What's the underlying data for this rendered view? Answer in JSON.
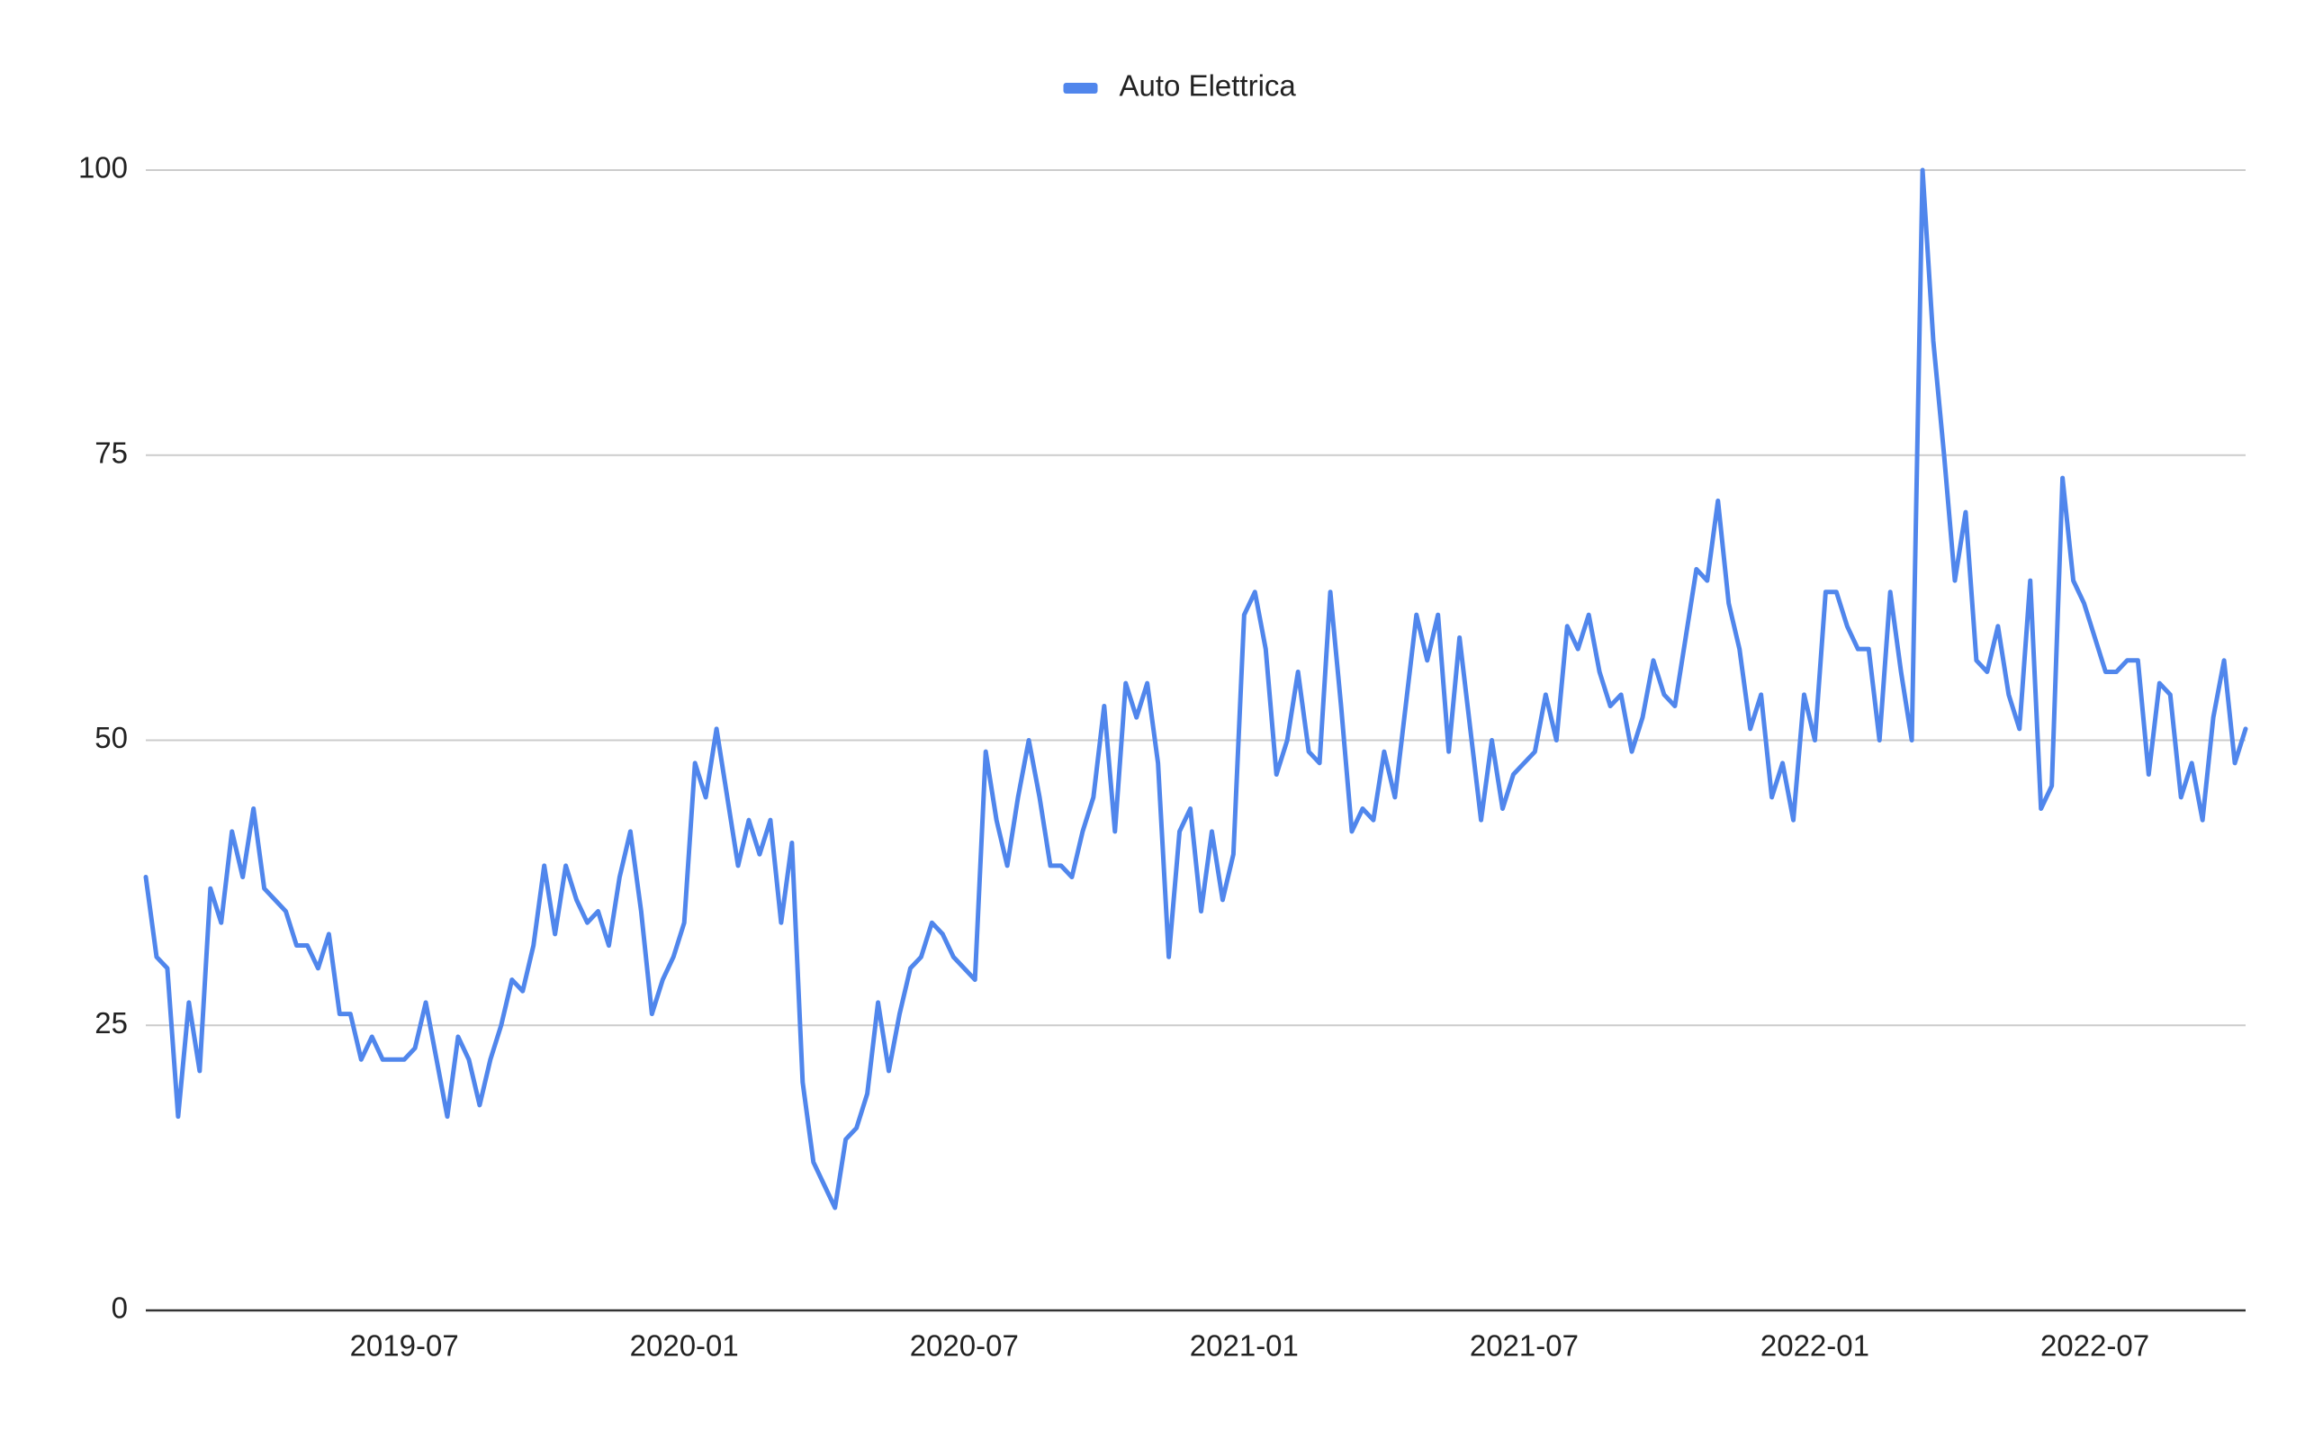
{
  "chart_data": {
    "type": "line",
    "legend": "top",
    "grid": true,
    "ylim": [
      0,
      100
    ],
    "yticks": [
      0,
      25,
      50,
      75,
      100
    ],
    "categories": [
      null,
      null,
      null,
      null,
      null,
      null,
      null,
      null,
      null,
      null,
      null,
      null,
      null,
      null,
      null,
      null,
      null,
      null,
      null,
      null,
      null,
      null,
      null,
      null,
      "2019-07",
      null,
      null,
      null,
      null,
      null,
      null,
      null,
      null,
      null,
      null,
      null,
      null,
      null,
      null,
      null,
      null,
      null,
      null,
      null,
      null,
      null,
      null,
      null,
      null,
      null,
      "2020-01",
      null,
      null,
      null,
      null,
      null,
      null,
      null,
      null,
      null,
      null,
      null,
      null,
      null,
      null,
      null,
      null,
      null,
      null,
      null,
      null,
      null,
      null,
      null,
      null,
      null,
      "2020-07",
      null,
      null,
      null,
      null,
      null,
      null,
      null,
      null,
      null,
      null,
      null,
      null,
      null,
      null,
      null,
      null,
      null,
      null,
      null,
      null,
      null,
      null,
      null,
      null,
      null,
      "2021-01",
      null,
      null,
      null,
      null,
      null,
      null,
      null,
      null,
      null,
      null,
      null,
      null,
      null,
      null,
      null,
      null,
      null,
      null,
      null,
      null,
      null,
      null,
      null,
      null,
      null,
      "2021-07",
      null,
      null,
      null,
      null,
      null,
      null,
      null,
      null,
      null,
      null,
      null,
      null,
      null,
      null,
      null,
      null,
      null,
      null,
      null,
      null,
      null,
      null,
      null,
      null,
      null,
      null,
      "2022-01",
      null,
      null,
      null,
      null,
      null,
      null,
      null,
      null,
      null,
      null,
      null,
      null,
      null,
      null,
      null,
      null,
      null,
      null,
      null,
      null,
      null,
      null,
      null,
      null,
      null,
      "2022-07",
      null,
      null,
      null,
      null,
      null,
      null,
      null,
      null,
      null,
      null,
      null,
      null,
      null,
      null
    ],
    "series": [
      {
        "name": "Auto Elettrica",
        "color": "#5086ec",
        "values": [
          38,
          31,
          30,
          17,
          27,
          21,
          37,
          34,
          42,
          38,
          44,
          37,
          36,
          35,
          32,
          32,
          30,
          33,
          26,
          26,
          22,
          24,
          22,
          22,
          22,
          23,
          27,
          22,
          17,
          24,
          22,
          18,
          22,
          25,
          29,
          28,
          32,
          39,
          33,
          39,
          36,
          34,
          35,
          32,
          38,
          42,
          35,
          26,
          29,
          31,
          34,
          48,
          45,
          51,
          45,
          39,
          43,
          40,
          43,
          34,
          41,
          20,
          13,
          11,
          9,
          15,
          16,
          19,
          27,
          21,
          26,
          30,
          31,
          34,
          33,
          31,
          30,
          29,
          49,
          43,
          39,
          45,
          50,
          45,
          39,
          39,
          38,
          42,
          45,
          53,
          42,
          55,
          52,
          55,
          48,
          31,
          42,
          44,
          35,
          42,
          36,
          40,
          61,
          63,
          58,
          47,
          50,
          56,
          49,
          48,
          63,
          53,
          42,
          44,
          43,
          49,
          45,
          53,
          61,
          57,
          61,
          49,
          59,
          51,
          43,
          50,
          44,
          47,
          48,
          49,
          54,
          50,
          60,
          58,
          61,
          56,
          53,
          54,
          49,
          52,
          57,
          54,
          53,
          59,
          65,
          64,
          71,
          62,
          58,
          51,
          54,
          45,
          48,
          43,
          54,
          50,
          63,
          63,
          60,
          58,
          58,
          50,
          63,
          56,
          50,
          100,
          85,
          75,
          64,
          70,
          57,
          56,
          60,
          54,
          51,
          64,
          44,
          46,
          73,
          64,
          62,
          59,
          56,
          56,
          57,
          57,
          47,
          55,
          54,
          45,
          48,
          43,
          52,
          57,
          48,
          51
        ]
      }
    ]
  }
}
